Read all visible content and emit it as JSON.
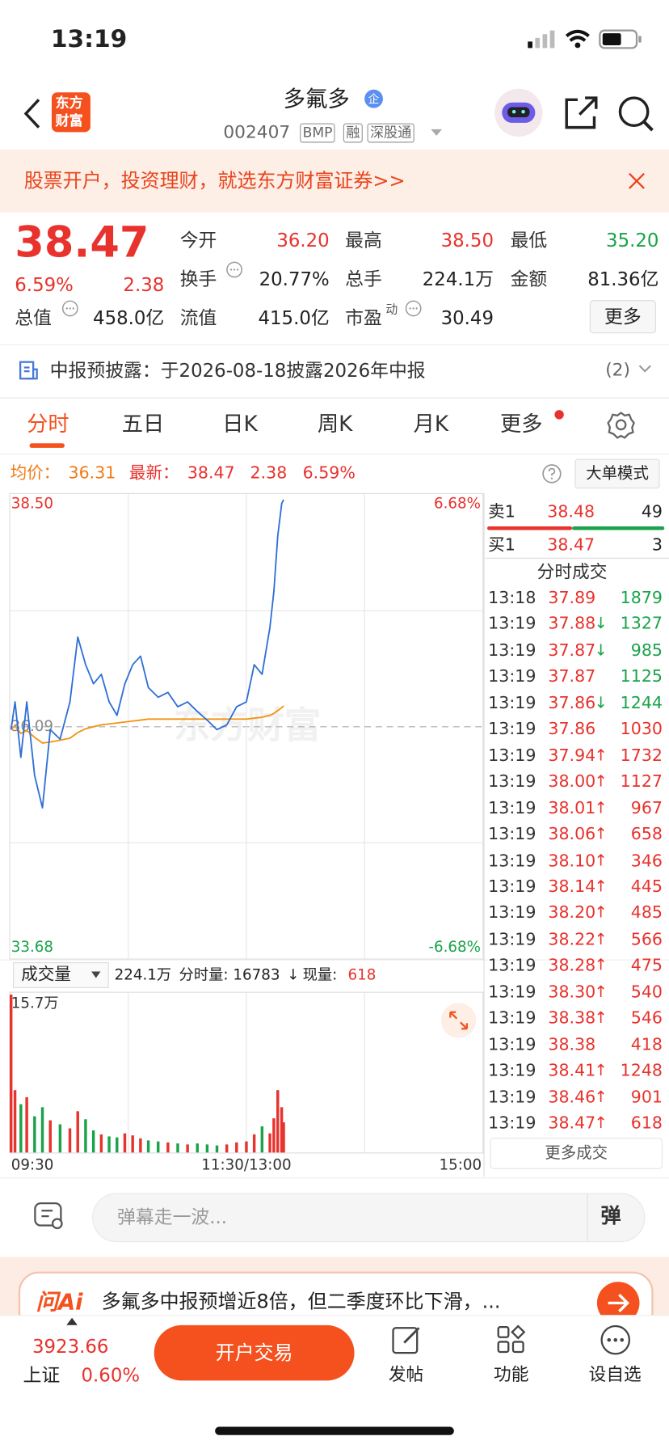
{
  "status": {
    "time": "13:19"
  },
  "header": {
    "logo": [
      "东方",
      "财富"
    ],
    "title": "多氟多",
    "badge": "企",
    "code": "002407",
    "tags": [
      "BMP",
      "融",
      "深股通"
    ]
  },
  "banner": {
    "text": "股票开户，投资理财，就选东方财富证券>>"
  },
  "quote": {
    "price": "38.47",
    "change_pct": "6.59%",
    "change": "2.38",
    "fields": [
      {
        "label": "今开",
        "value": "36.20"
      },
      {
        "label": "最高",
        "value": "38.50"
      },
      {
        "label": "最低",
        "value": "35.20"
      },
      {
        "label": "换手",
        "value": "20.77%"
      },
      {
        "label": "总手",
        "value": "224.1万"
      },
      {
        "label": "金额",
        "value": "81.36亿"
      },
      {
        "label": "总值",
        "value": "458.0亿"
      },
      {
        "label": "流值",
        "value": "415.0亿"
      },
      {
        "label": "市盈",
        "sup": "动",
        "value": "30.49"
      }
    ],
    "more": "更多"
  },
  "notice": {
    "text": "中报预披露：于2026-08-18披露2026年中报",
    "count": "(2)"
  },
  "tabs": [
    "分时",
    "五日",
    "日K",
    "周K",
    "月K",
    "更多"
  ],
  "summary": {
    "avg_label": "均价：",
    "avg": "36.31",
    "latest_label": "最新：",
    "latest": "38.47",
    "change": "2.38",
    "change_pct": "6.59%",
    "mode": "大单模式"
  },
  "chart_data": {
    "type": "line",
    "x": [
      0,
      2,
      5,
      8,
      12,
      16,
      20,
      25,
      30,
      34,
      38,
      42,
      46,
      50,
      54,
      58,
      62,
      66,
      70,
      75,
      80,
      85,
      90,
      95,
      100,
      105,
      110,
      115,
      120,
      124,
      128,
      132,
      134,
      136,
      138,
      139
    ],
    "series": [
      {
        "color": "#2f6fd6",
        "values": [
          36.06,
          36.35,
          35.77,
          36.35,
          35.58,
          35.24,
          36.06,
          35.96,
          36.35,
          37.03,
          36.74,
          36.54,
          36.64,
          36.35,
          36.21,
          36.54,
          36.74,
          36.83,
          36.5,
          36.4,
          36.45,
          36.3,
          36.35,
          36.25,
          36.16,
          36.06,
          36.11,
          36.3,
          36.35,
          36.74,
          36.64,
          37.13,
          37.51,
          38.09,
          38.43,
          38.47
        ]
      },
      {
        "color": "#f29312",
        "values": [
          36.06,
          36.1,
          36.02,
          36.05,
          35.98,
          35.92,
          35.93,
          35.95,
          35.97,
          36.03,
          36.07,
          36.09,
          36.11,
          36.12,
          36.13,
          36.14,
          36.15,
          36.16,
          36.17,
          36.17,
          36.17,
          36.17,
          36.17,
          36.17,
          36.17,
          36.17,
          36.17,
          36.17,
          36.17,
          36.18,
          36.19,
          36.21,
          36.23,
          36.26,
          36.29,
          36.31
        ]
      }
    ],
    "xlim": [
      0,
      240
    ],
    "xticks": [
      {
        "value": 0,
        "label": "09:30"
      },
      {
        "value": 120,
        "label": "11:30/13:00"
      },
      {
        "value": 240,
        "label": "15:00"
      }
    ],
    "ylim": [
      33.68,
      38.5
    ],
    "yticks": [
      {
        "value": 38.5,
        "label": "38.50"
      },
      36.09,
      33.68
    ],
    "y2lim": [
      -6.68,
      6.68
    ],
    "y2ticks": [
      {
        "value": 6.68,
        "label": "6.68%"
      },
      {
        "value": -6.68,
        "label": "-6.68%"
      }
    ],
    "watermark": "东方财富",
    "up_color": "#e8322d",
    "down_color": "#1aa34a",
    "volume": {
      "values": [
        15.7,
        6.2,
        4.8,
        5.5,
        3.6,
        4.5,
        3.2,
        2.8,
        2.4,
        4.1,
        3.3,
        2.2,
        1.8,
        1.6,
        1.5,
        1.9,
        1.7,
        1.4,
        1.2,
        1.1,
        1.0,
        0.9,
        0.8,
        0.9,
        0.8,
        0.7,
        0.8,
        1.0,
        1.1,
        1.8,
        2.6,
        1.9,
        3.4,
        6.2,
        4.5,
        3.0
      ],
      "ylim": [
        0,
        15.7
      ],
      "yticks": [
        {
          "value": 15.7,
          "label": "15.7万"
        }
      ]
    }
  },
  "volume_bar": {
    "label": "成交量",
    "total": "224.1万",
    "minute": "分时量: 16783",
    "arrow": "↓",
    "now_label": "现量:",
    "now": "618"
  },
  "book": {
    "sell": {
      "label": "卖1",
      "price": "38.48",
      "vol": "49"
    },
    "buy": {
      "label": "买1",
      "price": "38.47",
      "vol": "3"
    },
    "title": "分时成交",
    "trades": [
      {
        "time": "13:18",
        "price": "37.89",
        "vol": "1879",
        "color": "#1aa34a"
      },
      {
        "time": "13:19",
        "price": "37.88",
        "arrow": "↓",
        "vol": "1327",
        "color": "#1aa34a"
      },
      {
        "time": "13:19",
        "price": "37.87",
        "arrow": "↓",
        "vol": "985",
        "color": "#1aa34a"
      },
      {
        "time": "13:19",
        "price": "37.87",
        "vol": "1125",
        "color": "#1aa34a"
      },
      {
        "time": "13:19",
        "price": "37.86",
        "arrow": "↓",
        "vol": "1244",
        "color": "#1aa34a"
      },
      {
        "time": "13:19",
        "price": "37.86",
        "vol": "1030",
        "color": "#e8322d"
      },
      {
        "time": "13:19",
        "price": "37.94",
        "arrow": "↑",
        "vol": "1732",
        "color": "#e8322d"
      },
      {
        "time": "13:19",
        "price": "38.00",
        "arrow": "↑",
        "vol": "1127",
        "color": "#e8322d"
      },
      {
        "time": "13:19",
        "price": "38.01",
        "arrow": "↑",
        "vol": "967",
        "color": "#e8322d"
      },
      {
        "time": "13:19",
        "price": "38.06",
        "arrow": "↑",
        "vol": "658",
        "color": "#e8322d"
      },
      {
        "time": "13:19",
        "price": "38.10",
        "arrow": "↑",
        "vol": "346",
        "color": "#e8322d"
      },
      {
        "time": "13:19",
        "price": "38.14",
        "arrow": "↑",
        "vol": "445",
        "color": "#e8322d"
      },
      {
        "time": "13:19",
        "price": "38.20",
        "arrow": "↑",
        "vol": "485",
        "color": "#e8322d"
      },
      {
        "time": "13:19",
        "price": "38.22",
        "arrow": "↑",
        "vol": "566",
        "color": "#e8322d"
      },
      {
        "time": "13:19",
        "price": "38.28",
        "arrow": "↑",
        "vol": "475",
        "color": "#e8322d"
      },
      {
        "time": "13:19",
        "price": "38.30",
        "arrow": "↑",
        "vol": "540",
        "color": "#e8322d"
      },
      {
        "time": "13:19",
        "price": "38.38",
        "arrow": "↑",
        "vol": "546",
        "color": "#e8322d"
      },
      {
        "time": "13:19",
        "price": "38.38",
        "vol": "418",
        "color": "#e8322d"
      },
      {
        "time": "13:19",
        "price": "38.41",
        "arrow": "↑",
        "vol": "1248",
        "color": "#e8322d"
      },
      {
        "time": "13:19",
        "price": "38.46",
        "arrow": "↑",
        "vol": "901",
        "color": "#e8322d"
      },
      {
        "time": "13:19",
        "price": "38.47",
        "arrow": "↑",
        "vol": "618",
        "color": "#e8322d"
      }
    ],
    "more": "更多成交"
  },
  "comment": {
    "placeholder": "弹幕走一波...",
    "button": "弹"
  },
  "ai": {
    "logo": "问Ai",
    "text": "多氟多中报预增近8倍，但二季度环比下滑，..."
  },
  "bottom": {
    "index_value": "3923.66",
    "index_name": "上证",
    "index_pct": "0.60%",
    "trade": "开户交易",
    "nav": [
      "发帖",
      "功能",
      "设自选"
    ]
  }
}
